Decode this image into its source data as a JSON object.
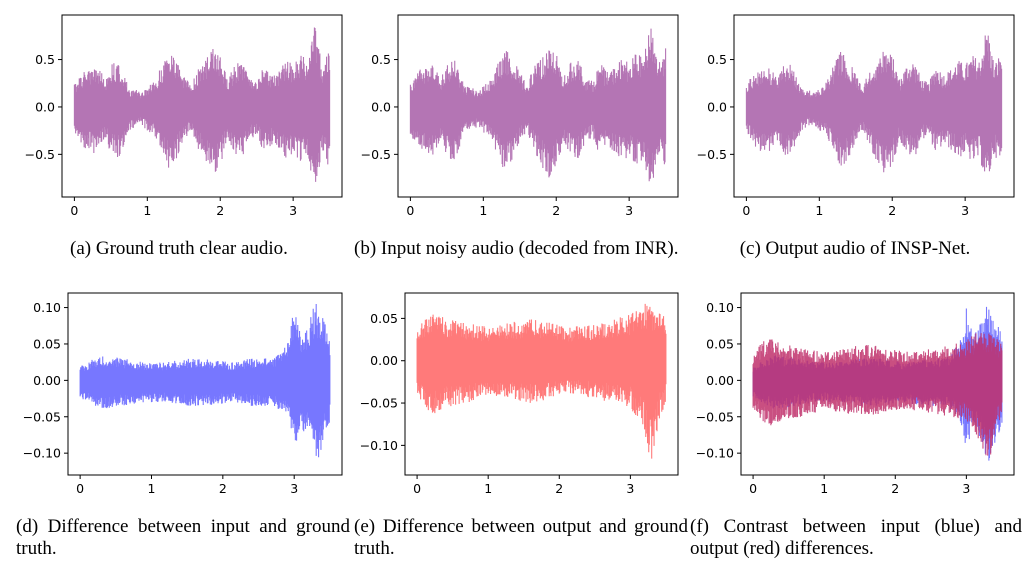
{
  "captions": [
    "(a) Ground truth clear audio.",
    "(b) Input noisy audio (decoded from INR).",
    "(c) Output audio of INSP-Net.",
    "(d) Difference between input and ground truth.",
    "(e) Difference between output and ground truth.",
    "(f) Contrast between input (blue) and output (red) differences."
  ],
  "chart_data": [
    {
      "type": "line",
      "caption": "(a) Ground truth clear audio.",
      "xlim": [
        -0.17,
        3.67
      ],
      "ylim": [
        -0.95,
        0.97
      ],
      "xticks": [
        0,
        1,
        2,
        3
      ],
      "yticks": [
        0.5,
        0.0,
        -0.5
      ],
      "ytick_labels": [
        "0.5",
        "0.0",
        "−0.5"
      ],
      "x_range": [
        0,
        3.5
      ],
      "grid": false,
      "series": [
        {
          "color": "#b475b4",
          "envelope_x": [
            0,
            0.15,
            0.3,
            0.42,
            0.5,
            0.6,
            0.68,
            0.75,
            0.85,
            0.93,
            1.0,
            1.1,
            1.2,
            1.3,
            1.4,
            1.5,
            1.6,
            1.7,
            1.8,
            1.9,
            2.0,
            2.1,
            2.2,
            2.3,
            2.4,
            2.5,
            2.6,
            2.7,
            2.8,
            2.9,
            3.0,
            3.1,
            3.2,
            3.3,
            3.4,
            3.5
          ],
          "upper": [
            0.25,
            0.4,
            0.45,
            0.3,
            0.45,
            0.5,
            0.35,
            0.2,
            0.18,
            0.15,
            0.2,
            0.28,
            0.45,
            0.6,
            0.5,
            0.35,
            0.22,
            0.42,
            0.5,
            0.62,
            0.55,
            0.3,
            0.45,
            0.5,
            0.3,
            0.25,
            0.45,
            0.35,
            0.4,
            0.5,
            0.45,
            0.55,
            0.5,
            0.88,
            0.45,
            0.6
          ],
          "lower": [
            -0.3,
            -0.45,
            -0.5,
            -0.35,
            -0.5,
            -0.55,
            -0.4,
            -0.25,
            -0.2,
            -0.2,
            -0.25,
            -0.3,
            -0.5,
            -0.68,
            -0.55,
            -0.35,
            -0.25,
            -0.45,
            -0.6,
            -0.75,
            -0.62,
            -0.35,
            -0.5,
            -0.55,
            -0.35,
            -0.3,
            -0.5,
            -0.4,
            -0.45,
            -0.55,
            -0.5,
            -0.6,
            -0.55,
            -0.85,
            -0.5,
            -0.65
          ]
        }
      ]
    },
    {
      "type": "line",
      "caption": "(b) Input noisy audio (decoded from INR).",
      "xlim": [
        -0.17,
        3.67
      ],
      "ylim": [
        -0.95,
        0.97
      ],
      "xticks": [
        0,
        1,
        2,
        3
      ],
      "yticks": [
        0.5,
        0.0,
        -0.5
      ],
      "ytick_labels": [
        "0.5",
        "0.0",
        "−0.5"
      ],
      "x_range": [
        0,
        3.5
      ],
      "grid": false,
      "series": [
        {
          "color": "#b475b4",
          "envelope_x": [
            0,
            0.15,
            0.3,
            0.42,
            0.5,
            0.6,
            0.68,
            0.75,
            0.85,
            0.93,
            1.0,
            1.1,
            1.2,
            1.3,
            1.4,
            1.5,
            1.6,
            1.7,
            1.8,
            1.9,
            2.0,
            2.1,
            2.2,
            2.3,
            2.4,
            2.5,
            2.6,
            2.7,
            2.8,
            2.9,
            3.0,
            3.1,
            3.2,
            3.3,
            3.4,
            3.5
          ],
          "upper": [
            0.27,
            0.42,
            0.46,
            0.32,
            0.46,
            0.52,
            0.36,
            0.22,
            0.2,
            0.17,
            0.22,
            0.3,
            0.46,
            0.62,
            0.52,
            0.37,
            0.24,
            0.44,
            0.52,
            0.64,
            0.56,
            0.32,
            0.47,
            0.52,
            0.32,
            0.27,
            0.47,
            0.37,
            0.42,
            0.52,
            0.47,
            0.57,
            0.52,
            0.9,
            0.48,
            0.62
          ],
          "lower": [
            -0.32,
            -0.47,
            -0.52,
            -0.37,
            -0.52,
            -0.57,
            -0.42,
            -0.27,
            -0.22,
            -0.22,
            -0.27,
            -0.32,
            -0.52,
            -0.7,
            -0.57,
            -0.37,
            -0.27,
            -0.47,
            -0.62,
            -0.77,
            -0.64,
            -0.37,
            -0.52,
            -0.57,
            -0.37,
            -0.32,
            -0.52,
            -0.42,
            -0.47,
            -0.57,
            -0.52,
            -0.62,
            -0.57,
            -0.87,
            -0.52,
            -0.67
          ]
        }
      ]
    },
    {
      "type": "line",
      "caption": "(c) Output audio of INSP-Net.",
      "xlim": [
        -0.17,
        3.67
      ],
      "ylim": [
        -0.95,
        0.97
      ],
      "xticks": [
        0,
        1,
        2,
        3
      ],
      "yticks": [
        0.5,
        0.0,
        -0.5
      ],
      "ytick_labels": [
        "0.5",
        "0.0",
        "−0.5"
      ],
      "x_range": [
        0,
        3.5
      ],
      "grid": false,
      "series": [
        {
          "color": "#b475b4",
          "envelope_x": [
            0,
            0.15,
            0.3,
            0.42,
            0.5,
            0.6,
            0.68,
            0.75,
            0.85,
            0.93,
            1.0,
            1.1,
            1.2,
            1.3,
            1.4,
            1.5,
            1.6,
            1.7,
            1.8,
            1.9,
            2.0,
            2.1,
            2.2,
            2.3,
            2.4,
            2.5,
            2.6,
            2.7,
            2.8,
            2.9,
            3.0,
            3.1,
            3.2,
            3.3,
            3.4,
            3.5
          ],
          "upper": [
            0.25,
            0.4,
            0.45,
            0.3,
            0.45,
            0.5,
            0.35,
            0.2,
            0.18,
            0.15,
            0.2,
            0.28,
            0.45,
            0.6,
            0.5,
            0.35,
            0.22,
            0.42,
            0.5,
            0.62,
            0.55,
            0.3,
            0.45,
            0.5,
            0.3,
            0.25,
            0.45,
            0.35,
            0.4,
            0.5,
            0.45,
            0.55,
            0.5,
            0.88,
            0.45,
            0.6
          ],
          "lower": [
            -0.3,
            -0.45,
            -0.5,
            -0.35,
            -0.5,
            -0.55,
            -0.4,
            -0.25,
            -0.2,
            -0.2,
            -0.25,
            -0.3,
            -0.5,
            -0.68,
            -0.55,
            -0.35,
            -0.25,
            -0.45,
            -0.6,
            -0.75,
            -0.62,
            -0.35,
            -0.5,
            -0.55,
            -0.35,
            -0.3,
            -0.5,
            -0.4,
            -0.45,
            -0.55,
            -0.5,
            -0.6,
            -0.55,
            -0.85,
            -0.5,
            -0.65
          ]
        }
      ]
    },
    {
      "type": "line",
      "caption": "(d) Difference between input and ground truth.",
      "xlim": [
        -0.17,
        3.67
      ],
      "ylim": [
        -0.13,
        0.12
      ],
      "xticks": [
        0,
        1,
        2,
        3
      ],
      "yticks": [
        0.1,
        0.05,
        0.0,
        -0.05,
        -0.1
      ],
      "ytick_labels": [
        "0.10",
        "0.05",
        "0.00",
        "−0.05",
        "−0.10"
      ],
      "x_range": [
        0,
        3.5
      ],
      "grid": false,
      "series": [
        {
          "color": "#7777ff",
          "envelope_x": [
            0,
            0.3,
            0.6,
            0.9,
            1.2,
            1.5,
            1.8,
            2.1,
            2.4,
            2.7,
            2.9,
            3.0,
            3.1,
            3.2,
            3.3,
            3.4,
            3.5
          ],
          "upper": [
            0.02,
            0.035,
            0.03,
            0.025,
            0.025,
            0.03,
            0.03,
            0.025,
            0.03,
            0.03,
            0.05,
            0.1,
            0.06,
            0.08,
            0.11,
            0.09,
            0.06
          ],
          "lower": [
            -0.025,
            -0.04,
            -0.035,
            -0.03,
            -0.03,
            -0.035,
            -0.035,
            -0.03,
            -0.035,
            -0.035,
            -0.05,
            -0.1,
            -0.065,
            -0.08,
            -0.12,
            -0.09,
            -0.06
          ]
        }
      ]
    },
    {
      "type": "line",
      "caption": "(e) Difference between output and ground truth.",
      "xlim": [
        -0.17,
        3.67
      ],
      "ylim": [
        -0.135,
        0.08
      ],
      "xticks": [
        0,
        1,
        2,
        3
      ],
      "yticks": [
        0.05,
        0.0,
        -0.05,
        -0.1
      ],
      "ytick_labels": [
        "0.05",
        "0.00",
        "−0.05",
        "−0.10"
      ],
      "x_range": [
        0,
        3.5
      ],
      "grid": false,
      "series": [
        {
          "color": "#ff7a7a",
          "envelope_x": [
            0,
            0.2,
            0.4,
            0.7,
            1.0,
            1.3,
            1.6,
            1.9,
            2.2,
            2.5,
            2.8,
            3.0,
            3.2,
            3.3,
            3.4,
            3.5
          ],
          "upper": [
            0.04,
            0.06,
            0.05,
            0.045,
            0.04,
            0.045,
            0.05,
            0.045,
            0.04,
            0.045,
            0.05,
            0.055,
            0.07,
            0.065,
            0.06,
            0.05
          ],
          "lower": [
            -0.04,
            -0.065,
            -0.055,
            -0.05,
            -0.04,
            -0.045,
            -0.05,
            -0.045,
            -0.04,
            -0.045,
            -0.05,
            -0.055,
            -0.085,
            -0.125,
            -0.07,
            -0.05
          ]
        }
      ]
    },
    {
      "type": "line",
      "caption": "(f) Contrast between input (blue) and output (red) differences.",
      "xlim": [
        -0.17,
        3.67
      ],
      "ylim": [
        -0.13,
        0.12
      ],
      "xticks": [
        0,
        1,
        2,
        3
      ],
      "yticks": [
        0.1,
        0.05,
        0.0,
        -0.05,
        -0.1
      ],
      "ytick_labels": [
        "0.10",
        "0.05",
        "0.00",
        "−0.05",
        "−0.10"
      ],
      "x_range": [
        0,
        3.5
      ],
      "grid": false,
      "series": [
        {
          "color": "#7777ff",
          "envelope_x": [
            0,
            0.3,
            0.6,
            0.9,
            1.2,
            1.5,
            1.8,
            2.1,
            2.4,
            2.7,
            2.9,
            3.0,
            3.1,
            3.2,
            3.3,
            3.4,
            3.5
          ],
          "upper": [
            0.02,
            0.035,
            0.03,
            0.025,
            0.025,
            0.03,
            0.03,
            0.025,
            0.03,
            0.03,
            0.05,
            0.1,
            0.06,
            0.08,
            0.11,
            0.09,
            0.06
          ],
          "lower": [
            -0.025,
            -0.04,
            -0.035,
            -0.03,
            -0.03,
            -0.035,
            -0.035,
            -0.03,
            -0.035,
            -0.035,
            -0.05,
            -0.1,
            -0.065,
            -0.08,
            -0.12,
            -0.09,
            -0.06
          ]
        },
        {
          "color": "#c0306b",
          "envelope_x": [
            0,
            0.2,
            0.4,
            0.7,
            1.0,
            1.3,
            1.6,
            1.9,
            2.2,
            2.5,
            2.8,
            3.0,
            3.2,
            3.3,
            3.4,
            3.5
          ],
          "upper": [
            0.04,
            0.06,
            0.05,
            0.045,
            0.04,
            0.045,
            0.05,
            0.045,
            0.04,
            0.045,
            0.05,
            0.055,
            0.07,
            0.065,
            0.06,
            0.05
          ],
          "lower": [
            -0.04,
            -0.065,
            -0.055,
            -0.05,
            -0.04,
            -0.045,
            -0.05,
            -0.045,
            -0.04,
            -0.045,
            -0.05,
            -0.055,
            -0.085,
            -0.125,
            -0.07,
            -0.05
          ]
        }
      ]
    }
  ]
}
